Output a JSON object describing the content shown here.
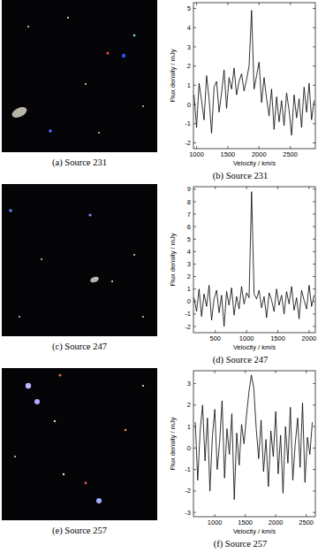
{
  "chart_data": [
    {
      "type": "line",
      "caption": "(b) Source 231",
      "xlabel": "Velocity / km/s",
      "ylabel": "Flux density / mJy",
      "color": "#000000",
      "x": [
        960,
        1000,
        1040,
        1080,
        1120,
        1160,
        1200,
        1240,
        1280,
        1320,
        1360,
        1400,
        1440,
        1480,
        1520,
        1560,
        1600,
        1640,
        1680,
        1720,
        1760,
        1800,
        1840,
        1880,
        1920,
        1960,
        2000,
        2040,
        2080,
        2120,
        2160,
        2200,
        2240,
        2280,
        2320,
        2360,
        2400,
        2440,
        2480,
        2520,
        2560,
        2600,
        2640,
        2680,
        2720,
        2760,
        2800,
        2840,
        2880
      ],
      "values": [
        0.5,
        -1.2,
        1.1,
        0.2,
        -0.8,
        1.5,
        0.3,
        -1.5,
        0.9,
        1.2,
        -0.4,
        0.6,
        1.8,
        -0.2,
        1.4,
        0.8,
        1.9,
        0.5,
        1.2,
        1.6,
        0.7,
        1.3,
        2.0,
        4.9,
        0.8,
        1.5,
        2.2,
        0.1,
        1.4,
        0.3,
        -0.6,
        0.8,
        -1.3,
        0.4,
        -0.9,
        0.2,
        -1.1,
        0.6,
        -0.3,
        -1.6,
        0.5,
        -0.7,
        0.3,
        -1.2,
        0.9,
        -0.4,
        1.1,
        -0.8,
        0.2
      ],
      "xlim": [
        950,
        2900
      ],
      "ylim": [
        -2.3,
        5.3
      ],
      "xticks": [
        1000,
        1500,
        2000,
        2500
      ],
      "yticks": [
        -2,
        -1,
        0,
        1,
        2,
        3,
        4,
        5
      ]
    },
    {
      "type": "line",
      "caption": "(d) Source 247",
      "xlabel": "Velocity / km/s",
      "ylabel": "Flux density / mJy",
      "color": "#000000",
      "x": [
        160,
        200,
        240,
        280,
        320,
        360,
        400,
        440,
        480,
        520,
        560,
        600,
        640,
        680,
        720,
        760,
        800,
        840,
        880,
        920,
        960,
        1000,
        1040,
        1080,
        1120,
        1160,
        1200,
        1240,
        1280,
        1320,
        1360,
        1400,
        1440,
        1480,
        1520,
        1560,
        1600,
        1640,
        1680,
        1720,
        1760,
        1800,
        1840,
        1880,
        1920,
        1960,
        2000,
        2040,
        2080
      ],
      "values": [
        0.3,
        -0.8,
        1.0,
        -1.2,
        0.6,
        -0.4,
        1.3,
        -1.5,
        0.2,
        0.9,
        -0.9,
        0.5,
        -2.0,
        0.8,
        -0.3,
        1.1,
        -1.1,
        0.4,
        -0.6,
        1.2,
        -0.2,
        0.7,
        0.3,
        8.8,
        0.6,
        0.2,
        0.9,
        -0.5,
        0.4,
        -1.3,
        0.7,
        0.1,
        -0.8,
        1.0,
        -0.3,
        0.5,
        -1.0,
        0.8,
        -0.2,
        1.2,
        -0.7,
        0.3,
        -1.4,
        0.9,
        0.1,
        -0.6,
        1.3,
        -0.4,
        0.5
      ],
      "xlim": [
        150,
        2100
      ],
      "ylim": [
        -2.5,
        9.2
      ],
      "xticks": [
        500,
        1000,
        1500,
        2000
      ],
      "yticks": [
        -2,
        -1,
        0,
        1,
        2,
        3,
        4,
        5,
        6,
        7,
        8,
        9
      ]
    },
    {
      "type": "line",
      "caption": "(f) Source 257",
      "xlabel": "Velocity / km/s",
      "ylabel": "Flux density / mJy",
      "color": "#000000",
      "x": [
        680,
        720,
        760,
        800,
        840,
        880,
        920,
        960,
        1000,
        1040,
        1080,
        1120,
        1160,
        1200,
        1240,
        1280,
        1320,
        1360,
        1400,
        1440,
        1480,
        1520,
        1560,
        1600,
        1640,
        1680,
        1720,
        1760,
        1800,
        1840,
        1880,
        1920,
        1960,
        2000,
        2040,
        2080,
        2120,
        2160,
        2200,
        2240,
        2280,
        2320,
        2360,
        2400,
        2440,
        2480,
        2520,
        2560,
        2600
      ],
      "values": [
        1.2,
        -1.5,
        0.8,
        2.0,
        -0.6,
        1.4,
        -2.0,
        0.5,
        1.8,
        -1.0,
        0.3,
        2.2,
        -1.4,
        0.9,
        -0.3,
        1.6,
        -2.4,
        0.7,
        -0.8,
        1.1,
        0.2,
        1.5,
        2.6,
        3.4,
        2.8,
        0.9,
        -0.5,
        1.3,
        -1.1,
        0.4,
        -1.8,
        0.8,
        -0.4,
        1.7,
        -1.2,
        0.6,
        -2.1,
        1.0,
        -0.7,
        1.9,
        -1.5,
        0.2,
        1.4,
        -0.9,
        2.1,
        -1.6,
        0.5,
        -0.3,
        1.2
      ],
      "xlim": [
        650,
        2650
      ],
      "ylim": [
        -3.2,
        3.6
      ],
      "xticks": [
        1000,
        1500,
        2000,
        2500
      ],
      "yticks": [
        -3,
        -2,
        -1,
        0,
        1,
        2,
        3
      ]
    }
  ],
  "images": [
    {
      "caption": "(a) Source 231"
    },
    {
      "caption": "(c) Source 247"
    },
    {
      "caption": "(e) Source 257"
    }
  ]
}
